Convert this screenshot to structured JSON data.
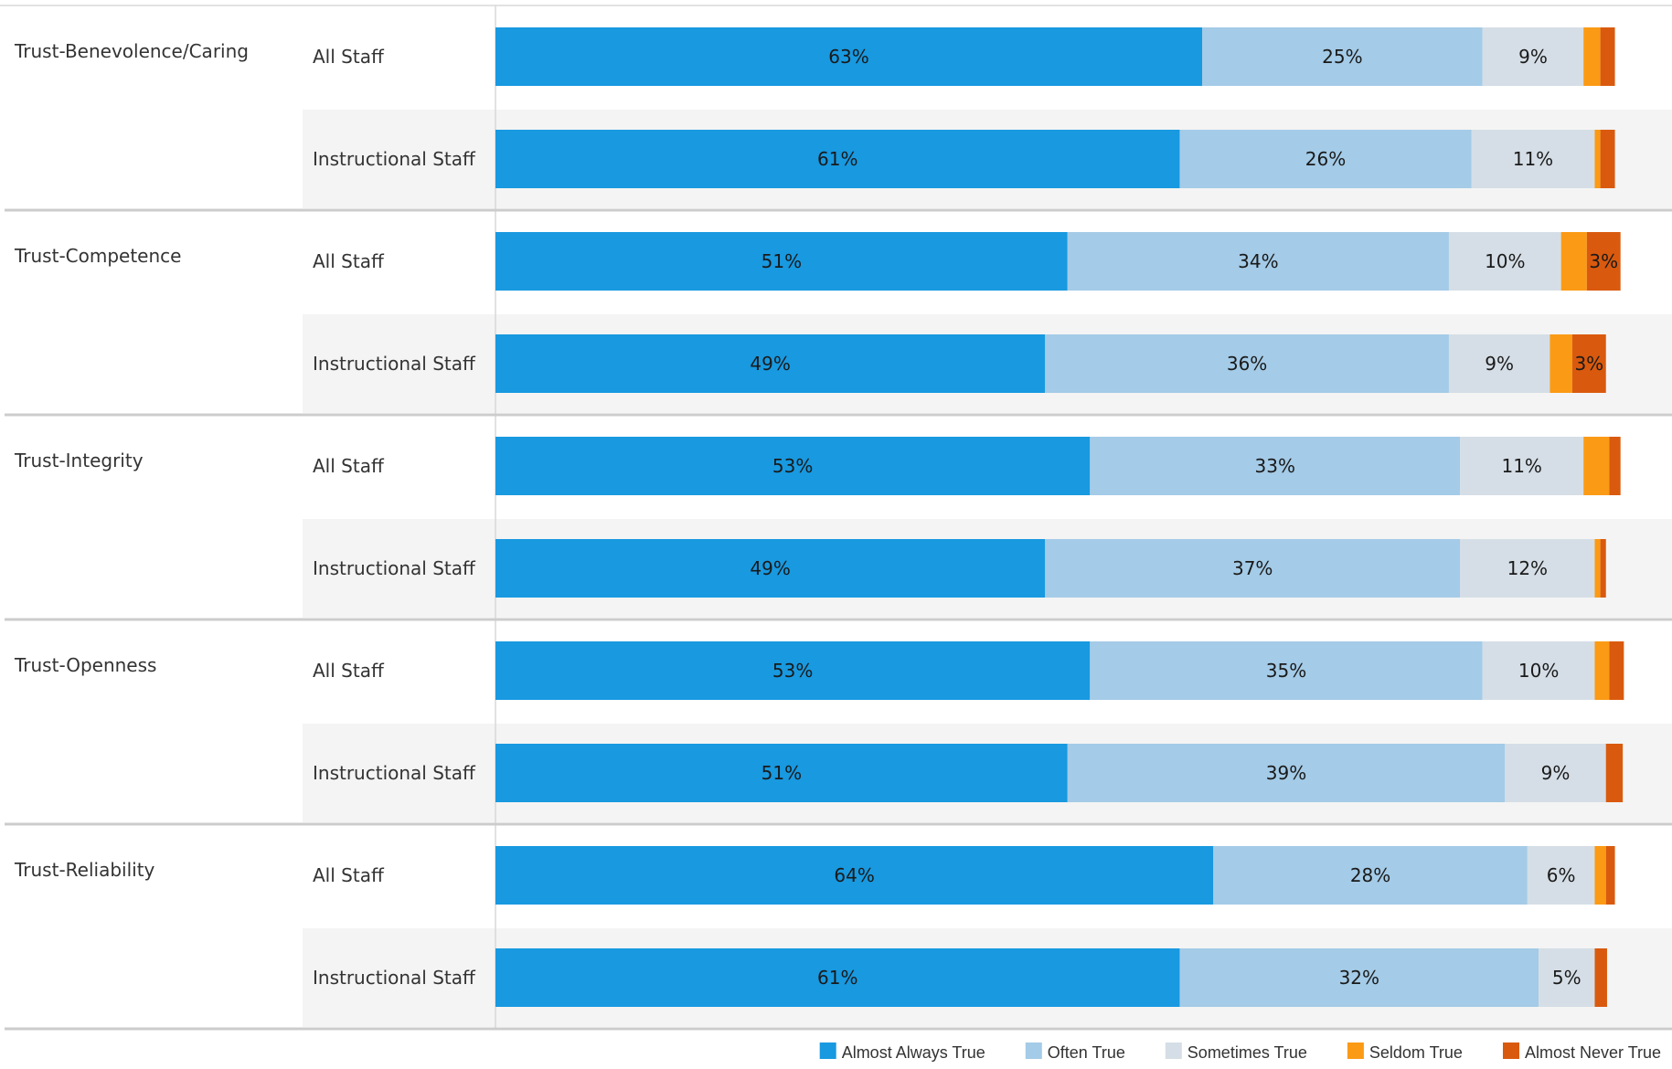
{
  "chart_data": {
    "type": "bar",
    "orientation": "horizontal",
    "stacked": true,
    "value_unit": "%",
    "categories": [
      {
        "name": "Trust-Benevolence/Caring",
        "groups": [
          {
            "name": "All Staff",
            "values": [
              63,
              25,
              9,
              1.5,
              1.3
            ],
            "labels": [
              "63%",
              "25%",
              "9%",
              "",
              ""
            ]
          },
          {
            "name": "Instructional Staff",
            "values": [
              61,
              26,
              11,
              0.5,
              1.3
            ],
            "labels": [
              "61%",
              "26%",
              "11%",
              "",
              ""
            ]
          }
        ]
      },
      {
        "name": "Trust-Competence",
        "groups": [
          {
            "name": "All Staff",
            "values": [
              51,
              34,
              10,
              2.3,
              3
            ],
            "labels": [
              "51%",
              "34%",
              "10%",
              "",
              "3%"
            ]
          },
          {
            "name": "Instructional Staff",
            "values": [
              49,
              36,
              9,
              2,
              3
            ],
            "labels": [
              "49%",
              "36%",
              "9%",
              "",
              "3%"
            ]
          }
        ]
      },
      {
        "name": "Trust-Integrity",
        "groups": [
          {
            "name": "All Staff",
            "values": [
              53,
              33,
              11,
              2.3,
              1
            ],
            "labels": [
              "53%",
              "33%",
              "11%",
              "",
              ""
            ]
          },
          {
            "name": "Instructional Staff",
            "values": [
              49,
              37,
              12,
              0.5,
              0.5
            ],
            "labels": [
              "49%",
              "37%",
              "12%",
              "",
              ""
            ]
          }
        ]
      },
      {
        "name": "Trust-Openness",
        "groups": [
          {
            "name": "All Staff",
            "values": [
              53,
              35,
              10,
              1.3,
              1.3
            ],
            "labels": [
              "53%",
              "35%",
              "10%",
              "",
              ""
            ]
          },
          {
            "name": "Instructional Staff",
            "values": [
              51,
              39,
              9,
              0,
              1.5
            ],
            "labels": [
              "51%",
              "39%",
              "9%",
              "",
              ""
            ]
          }
        ]
      },
      {
        "name": "Trust-Reliability",
        "groups": [
          {
            "name": "All Staff",
            "values": [
              64,
              28,
              6,
              1,
              0.8
            ],
            "labels": [
              "64%",
              "28%",
              "6%",
              "",
              ""
            ]
          },
          {
            "name": "Instructional Staff",
            "values": [
              61,
              32,
              5,
              0,
              1.1
            ],
            "labels": [
              "61%",
              "32%",
              "5%",
              "",
              ""
            ]
          }
        ]
      }
    ],
    "legend": {
      "position": "bottom-right",
      "items": [
        {
          "name": "Almost Always True",
          "color": "#1899e0"
        },
        {
          "name": "Often True",
          "color": "#a4cbe7"
        },
        {
          "name": "Sometimes True",
          "color": "#d5dee6"
        },
        {
          "name": "Seldom True",
          "color": "#fb9a15"
        },
        {
          "name": "Almost Never True",
          "color": "#d95a0e"
        }
      ]
    },
    "shaded_row_color": "#f4f4f4",
    "separator_color": "#cccccc",
    "grid": false
  }
}
